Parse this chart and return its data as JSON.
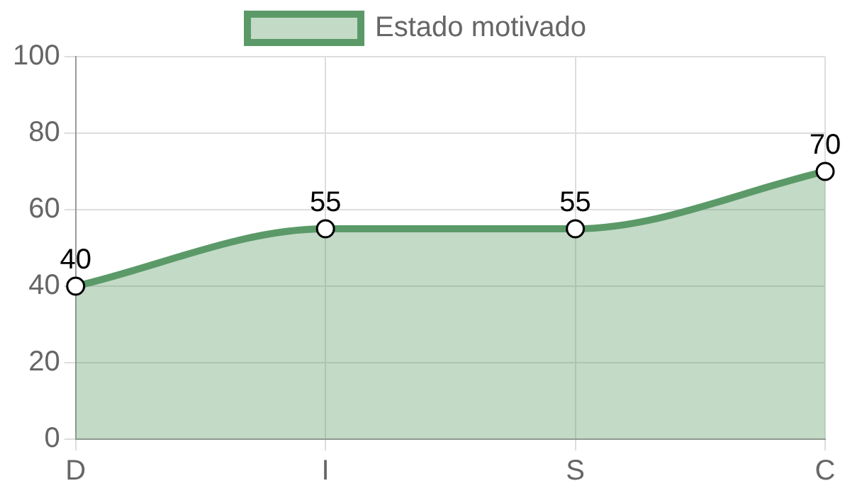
{
  "chart_data": {
    "type": "area",
    "categories": [
      "D",
      "I",
      "S",
      "C"
    ],
    "series": [
      {
        "name": "Estado motivado",
        "color": "#5b9a68",
        "values": [
          40,
          55,
          55,
          70
        ]
      }
    ],
    "ylim": [
      0,
      100
    ],
    "yticks": [
      0,
      20,
      40,
      60,
      80,
      100
    ],
    "grid": true,
    "legend": "top",
    "marker": "circle",
    "data_labels": true
  }
}
